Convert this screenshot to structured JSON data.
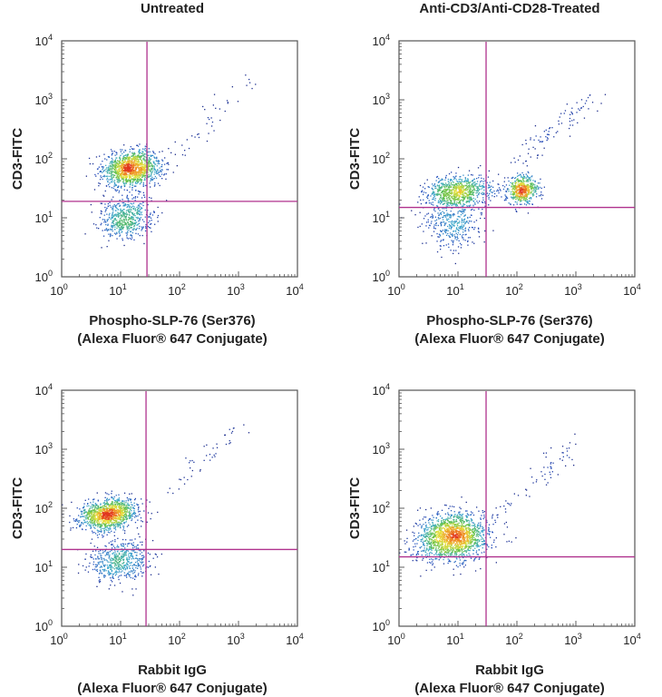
{
  "chart_data": [
    {
      "type": "scatter",
      "title": "Untreated",
      "xlabel": [
        "Phospho-SLP-76 (Ser376)",
        "(Alexa Fluor® 647 Conjugate)"
      ],
      "ylabel": "CD3-FITC",
      "x_scale": "log",
      "y_scale": "log",
      "xlim": [
        1,
        10000
      ],
      "ylim": [
        1,
        10000
      ],
      "tick_base": "10",
      "tick_exponents": [
        0,
        1,
        2,
        3,
        4
      ],
      "quadrant_gate": {
        "x": 28,
        "y": 19
      },
      "coloring": "density (blue-low to red-high)",
      "populations": [
        {
          "center": [
            15,
            70
          ],
          "log_spread": [
            0.24,
            0.15
          ],
          "events": 1300
        },
        {
          "center": [
            12,
            10
          ],
          "log_spread": [
            0.22,
            0.17
          ],
          "events": 550
        },
        {
          "diagonal_from": [
            30,
            40
          ],
          "diagonal_to": [
            1600,
            2300
          ],
          "events": 60
        }
      ]
    },
    {
      "type": "scatter",
      "title": "Anti-CD3/Anti-CD28-Treated",
      "xlabel": [
        "Phospho-SLP-76 (Ser376)",
        "(Alexa Fluor® 647 Conjugate)"
      ],
      "ylabel": "CD3-FITC",
      "x_scale": "log",
      "y_scale": "log",
      "xlim": [
        1,
        10000
      ],
      "ylim": [
        1,
        10000
      ],
      "tick_base": "10",
      "tick_exponents": [
        0,
        1,
        2,
        3,
        4
      ],
      "quadrant_gate": {
        "x": 30,
        "y": 15
      },
      "coloring": "density (blue-low to red-high)",
      "populations": [
        {
          "center": [
            10,
            28
          ],
          "log_spread": [
            0.28,
            0.13
          ],
          "events": 800
        },
        {
          "center": [
            120,
            30
          ],
          "log_spread": [
            0.13,
            0.12
          ],
          "events": 550
        },
        {
          "center": [
            8,
            8
          ],
          "log_spread": [
            0.25,
            0.22
          ],
          "events": 350
        },
        {
          "diagonal_from": [
            100,
            100
          ],
          "diagonal_to": [
            2000,
            1000
          ],
          "events": 90
        }
      ]
    },
    {
      "type": "scatter",
      "title": "",
      "xlabel": [
        "Rabbit IgG",
        "(Alexa Fluor® 647 Conjugate)"
      ],
      "ylabel": "CD3-FITC",
      "x_scale": "log",
      "y_scale": "log",
      "xlim": [
        1,
        10000
      ],
      "ylim": [
        1,
        10000
      ],
      "tick_base": "10",
      "tick_exponents": [
        0,
        1,
        2,
        3,
        4
      ],
      "quadrant_gate": {
        "x": 27,
        "y": 20
      },
      "coloring": "density (blue-low to red-high)",
      "populations": [
        {
          "center": [
            6,
            80
          ],
          "log_spread": [
            0.25,
            0.13
          ],
          "events": 1200
        },
        {
          "center": [
            9,
            13
          ],
          "log_spread": [
            0.25,
            0.18
          ],
          "events": 550
        },
        {
          "diagonal_from": [
            60,
            200
          ],
          "diagonal_to": [
            1000,
            2200
          ],
          "events": 45
        }
      ]
    },
    {
      "type": "scatter",
      "title": "",
      "xlabel": [
        "Rabbit IgG",
        "(Alexa Fluor® 647 Conjugate)"
      ],
      "ylabel": "CD3-FITC",
      "x_scale": "log",
      "y_scale": "log",
      "xlim": [
        1,
        10000
      ],
      "ylim": [
        1,
        10000
      ],
      "tick_base": "10",
      "tick_exponents": [
        0,
        1,
        2,
        3,
        4
      ],
      "quadrant_gate": {
        "x": 30,
        "y": 15
      },
      "coloring": "density (blue-low to red-high)",
      "populations": [
        {
          "center": [
            8,
            33
          ],
          "log_spread": [
            0.3,
            0.2
          ],
          "events": 1700
        },
        {
          "diagonal_from": [
            40,
            80
          ],
          "diagonal_to": [
            1100,
            1300
          ],
          "events": 65
        }
      ]
    }
  ]
}
